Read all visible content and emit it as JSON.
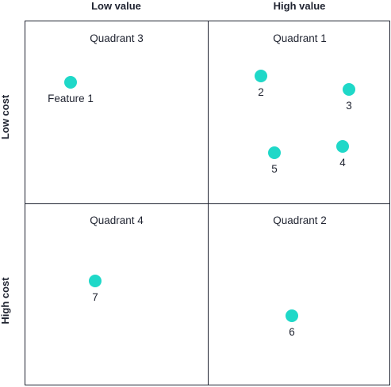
{
  "columns": {
    "left": "Low value",
    "right": "High value"
  },
  "rows": {
    "top": "Low cost",
    "bottom": "High cost"
  },
  "quadrants": {
    "top_left": "Quadrant 3",
    "top_right": "Quadrant 1",
    "bottom_left": "Quadrant 4",
    "bottom_right": "Quadrant 2"
  },
  "features": [
    {
      "label": "Feature 1",
      "quadrant": "Quadrant 3"
    },
    {
      "label": "2",
      "quadrant": "Quadrant 1"
    },
    {
      "label": "3",
      "quadrant": "Quadrant 1"
    },
    {
      "label": "4",
      "quadrant": "Quadrant 1"
    },
    {
      "label": "5",
      "quadrant": "Quadrant 1"
    },
    {
      "label": "6",
      "quadrant": "Quadrant 2"
    },
    {
      "label": "7",
      "quadrant": "Quadrant 4"
    }
  ],
  "colors": {
    "dot": "#1fd8c8",
    "line": "#1f2330",
    "text": "#1f2330"
  }
}
